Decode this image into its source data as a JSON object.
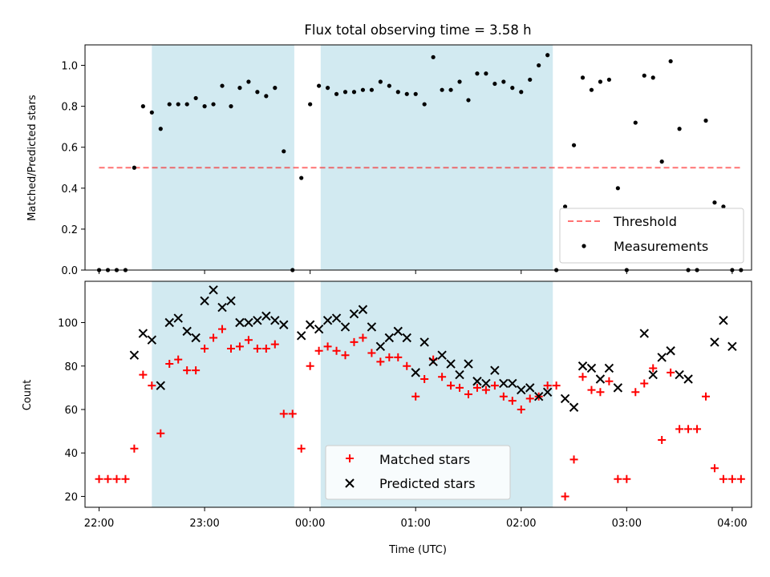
{
  "title": "Flux total observing time = 3.58 h",
  "colors": {
    "shade": "#add8e6",
    "threshold": "#ff0000",
    "matched": "#ff0000",
    "predicted": "#000000",
    "measure": "#000000"
  },
  "chart_data": [
    {
      "type": "scatter",
      "panel": "top",
      "ylabel": "Matched/Predicted stars",
      "ylim": [
        0,
        1.1
      ],
      "yticks": [
        0,
        0.2,
        0.4,
        0.6,
        0.8,
        1.0
      ],
      "ytick_labels": [
        "0.0",
        "0.2",
        "0.4",
        "0.6",
        "0.8",
        "1.0"
      ],
      "xlim": [
        "21:52",
        "04:11"
      ],
      "legend_position": "lower-right",
      "threshold": {
        "name": "Threshold",
        "value": 0.5,
        "x_start": "22:00",
        "x_end": "04:05"
      },
      "series": [
        {
          "name": "Measurements",
          "x": [
            "22:00",
            "22:05",
            "22:10",
            "22:15",
            "22:20",
            "22:25",
            "22:30",
            "22:35",
            "22:40",
            "22:45",
            "22:50",
            "22:55",
            "23:00",
            "23:05",
            "23:10",
            "23:15",
            "23:20",
            "23:25",
            "23:30",
            "23:35",
            "23:40",
            "23:45",
            "23:50",
            "23:55",
            "00:00",
            "00:05",
            "00:10",
            "00:15",
            "00:20",
            "00:25",
            "00:30",
            "00:35",
            "00:40",
            "00:45",
            "00:50",
            "00:55",
            "01:00",
            "01:05",
            "01:10",
            "01:15",
            "01:20",
            "01:25",
            "01:30",
            "01:35",
            "01:40",
            "01:45",
            "01:50",
            "01:55",
            "02:00",
            "02:05",
            "02:10",
            "02:15",
            "02:20",
            "02:25",
            "02:30",
            "02:35",
            "02:40",
            "02:45",
            "02:50",
            "02:55",
            "03:00",
            "03:05",
            "03:10",
            "03:15",
            "03:20",
            "03:25",
            "03:30",
            "03:35",
            "03:40",
            "03:45",
            "03:50",
            "03:55",
            "04:00",
            "04:05"
          ],
          "y": [
            0,
            0,
            0,
            0,
            0.5,
            0.8,
            0.77,
            0.69,
            0.81,
            0.81,
            0.81,
            0.84,
            0.8,
            0.81,
            0.9,
            0.8,
            0.89,
            0.92,
            0.87,
            0.85,
            0.89,
            0.58,
            0,
            0.45,
            0.81,
            0.9,
            0.89,
            0.86,
            0.87,
            0.87,
            0.88,
            0.88,
            0.92,
            0.9,
            0.87,
            0.86,
            0.86,
            0.81,
            1.04,
            0.88,
            0.88,
            0.92,
            0.83,
            0.96,
            0.96,
            0.91,
            0.92,
            0.89,
            0.87,
            0.93,
            1.0,
            1.05,
            0,
            0.31,
            0.61,
            0.94,
            0.88,
            0.92,
            0.93,
            0.4,
            0,
            0.72,
            0.95,
            0.94,
            0.53,
            1.02,
            0.69,
            0,
            0,
            0.73,
            0.33,
            0.31,
            0,
            0
          ]
        }
      ],
      "shaded_spans": [
        [
          "22:30",
          "23:51"
        ],
        [
          "00:06",
          "02:18"
        ]
      ]
    },
    {
      "type": "scatter",
      "panel": "bottom",
      "xlabel": "Time (UTC)",
      "ylabel": "Count",
      "ylim": [
        15,
        119
      ],
      "yticks": [
        20,
        40,
        60,
        80,
        100
      ],
      "ytick_labels": [
        "20",
        "40",
        "60",
        "80",
        "100"
      ],
      "xlim": [
        "21:52",
        "04:11"
      ],
      "xticks": [
        "22:00",
        "23:00",
        "00:00",
        "01:00",
        "02:00",
        "03:00",
        "04:00"
      ],
      "legend_position": "lower-center",
      "series": [
        {
          "name": "Matched stars",
          "x": [
            "22:00",
            "22:05",
            "22:10",
            "22:15",
            "22:20",
            "22:25",
            "22:30",
            "22:35",
            "22:40",
            "22:45",
            "22:50",
            "22:55",
            "23:00",
            "23:05",
            "23:10",
            "23:15",
            "23:20",
            "23:25",
            "23:30",
            "23:35",
            "23:40",
            "23:45",
            "23:50",
            "23:55",
            "00:00",
            "00:05",
            "00:10",
            "00:15",
            "00:20",
            "00:25",
            "00:30",
            "00:35",
            "00:40",
            "00:45",
            "00:50",
            "00:55",
            "01:00",
            "01:05",
            "01:10",
            "01:15",
            "01:20",
            "01:25",
            "01:30",
            "01:35",
            "01:40",
            "01:45",
            "01:50",
            "01:55",
            "02:00",
            "02:05",
            "02:10",
            "02:15",
            "02:20",
            "02:25",
            "02:30",
            "02:35",
            "02:40",
            "02:45",
            "02:50",
            "02:55",
            "03:00",
            "03:05",
            "03:10",
            "03:15",
            "03:20",
            "03:25",
            "03:30",
            "03:35",
            "03:40",
            "03:45",
            "03:50",
            "03:55",
            "04:00",
            "04:05"
          ],
          "y": [
            28,
            28,
            28,
            28,
            42,
            76,
            71,
            49,
            81,
            83,
            78,
            78,
            88,
            93,
            97,
            88,
            89,
            92,
            88,
            88,
            90,
            58,
            58,
            42,
            80,
            87,
            89,
            87,
            85,
            91,
            93,
            86,
            82,
            84,
            84,
            80,
            66,
            74,
            83,
            75,
            71,
            70,
            67,
            70,
            69,
            71,
            66,
            64,
            60,
            65,
            66,
            71,
            71,
            20,
            37,
            75,
            69,
            68,
            73,
            28,
            28,
            68,
            72,
            79,
            46,
            77,
            51,
            51,
            51,
            66,
            33,
            28,
            28,
            28
          ]
        },
        {
          "name": "Predicted stars",
          "x": [
            "22:20",
            "22:25",
            "22:30",
            "22:35",
            "22:40",
            "22:45",
            "22:50",
            "22:55",
            "23:00",
            "23:05",
            "23:10",
            "23:15",
            "23:20",
            "23:25",
            "23:30",
            "23:35",
            "23:40",
            "23:45",
            "23:55",
            "00:00",
            "00:05",
            "00:10",
            "00:15",
            "00:20",
            "00:25",
            "00:30",
            "00:35",
            "00:40",
            "00:45",
            "00:50",
            "00:55",
            "01:00",
            "01:05",
            "01:10",
            "01:15",
            "01:20",
            "01:25",
            "01:30",
            "01:35",
            "01:40",
            "01:45",
            "01:50",
            "01:55",
            "02:00",
            "02:05",
            "02:10",
            "02:15",
            "02:25",
            "02:30",
            "02:35",
            "02:40",
            "02:45",
            "02:50",
            "02:55",
            "03:10",
            "03:15",
            "03:20",
            "03:25",
            "03:30",
            "03:35",
            "03:50",
            "03:55",
            "04:00"
          ],
          "y": [
            85,
            95,
            92,
            71,
            100,
            102,
            96,
            93,
            110,
            115,
            107,
            110,
            100,
            100,
            101,
            103,
            101,
            99,
            94,
            99,
            97,
            101,
            102,
            98,
            104,
            106,
            98,
            89,
            93,
            96,
            93,
            77,
            91,
            82,
            85,
            81,
            76,
            81,
            73,
            72,
            78,
            72,
            72,
            69,
            70,
            66,
            68,
            65,
            61,
            80,
            79,
            74,
            79,
            70,
            95,
            76,
            84,
            87,
            76,
            74,
            91,
            101,
            89
          ]
        }
      ],
      "shaded_spans": [
        [
          "22:30",
          "23:51"
        ],
        [
          "00:06",
          "02:18"
        ]
      ]
    }
  ]
}
